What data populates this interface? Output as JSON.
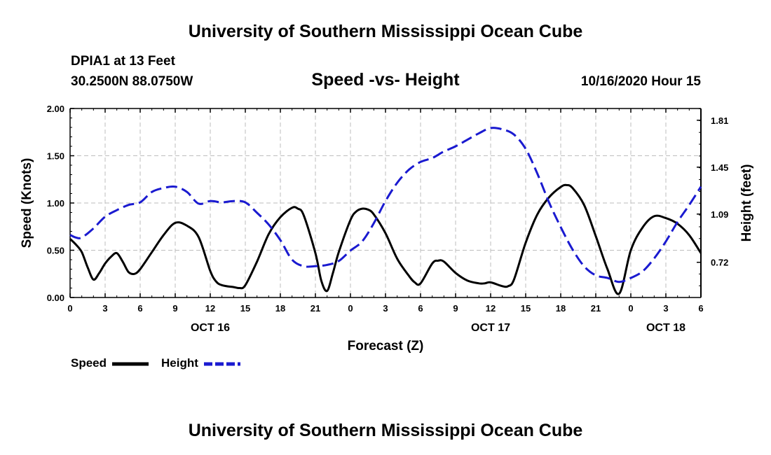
{
  "page": {
    "top_title": "University of Southern Mississippi Ocean Cube",
    "bottom_title": "University of Southern Mississippi Ocean Cube",
    "station": "DPIA1 at 13 Feet",
    "coords": "30.2500N 88.0750W",
    "datetime": "10/16/2020 Hour 15"
  },
  "chart_data": {
    "type": "line",
    "title": "Speed -vs- Height",
    "xlabel": "Forecast (Z)",
    "ylabel": "Speed (Knots)",
    "y2label": "Height (feet)",
    "xlim": [
      0,
      54
    ],
    "ylim": [
      0,
      2
    ],
    "y2lim": [
      0.45,
      1.9
    ],
    "grid": true,
    "x_ticks": [
      0,
      3,
      6,
      9,
      12,
      15,
      18,
      21,
      24,
      27,
      30,
      33,
      36,
      39,
      42,
      45,
      48,
      51,
      54
    ],
    "x_tick_labels": [
      "0",
      "3",
      "6",
      "9",
      "12",
      "15",
      "18",
      "21",
      "0",
      "3",
      "6",
      "9",
      "12",
      "15",
      "18",
      "21",
      "0",
      "3",
      "6"
    ],
    "date_labels": [
      {
        "x": 12,
        "text": "OCT 16"
      },
      {
        "x": 36,
        "text": "OCT 17"
      },
      {
        "x": 51,
        "text": "OCT 18"
      }
    ],
    "y_ticks": [
      0,
      0.5,
      1,
      1.5,
      2
    ],
    "y_tick_labels": [
      "0.00",
      "0.50",
      "1.00",
      "1.50",
      "2.00"
    ],
    "y2_ticks": [
      0.72,
      1.09,
      1.45,
      1.81
    ],
    "y2_tick_labels": [
      "0.72",
      "1.09",
      "1.45",
      "1.81"
    ],
    "legend": {
      "position": "bottom-left",
      "speed_label": "Speed",
      "height_label": "Height"
    },
    "series": [
      {
        "name": "Speed",
        "axis": "left",
        "color": "#000000",
        "dash": "solid",
        "points": [
          [
            0,
            0.62
          ],
          [
            0.5,
            0.56
          ],
          [
            1,
            0.48
          ],
          [
            1.5,
            0.32
          ],
          [
            2,
            0.19
          ],
          [
            2.5,
            0.26
          ],
          [
            3,
            0.36
          ],
          [
            3.5,
            0.43
          ],
          [
            4,
            0.47
          ],
          [
            4.5,
            0.38
          ],
          [
            5,
            0.27
          ],
          [
            5.5,
            0.25
          ],
          [
            6,
            0.3
          ],
          [
            7,
            0.48
          ],
          [
            8,
            0.66
          ],
          [
            9,
            0.79
          ],
          [
            10,
            0.76
          ],
          [
            11,
            0.64
          ],
          [
            12,
            0.28
          ],
          [
            12.5,
            0.17
          ],
          [
            13,
            0.13
          ],
          [
            14,
            0.11
          ],
          [
            14.5,
            0.1
          ],
          [
            15,
            0.13
          ],
          [
            16,
            0.38
          ],
          [
            17,
            0.67
          ],
          [
            18,
            0.85
          ],
          [
            19,
            0.95
          ],
          [
            19.5,
            0.94
          ],
          [
            20,
            0.87
          ],
          [
            21,
            0.47
          ],
          [
            21.5,
            0.18
          ],
          [
            22,
            0.07
          ],
          [
            22.5,
            0.26
          ],
          [
            23,
            0.48
          ],
          [
            24,
            0.82
          ],
          [
            24.5,
            0.91
          ],
          [
            25,
            0.94
          ],
          [
            25.5,
            0.93
          ],
          [
            26,
            0.88
          ],
          [
            27,
            0.68
          ],
          [
            28,
            0.41
          ],
          [
            29,
            0.23
          ],
          [
            29.5,
            0.16
          ],
          [
            30,
            0.15
          ],
          [
            31,
            0.36
          ],
          [
            31.5,
            0.39
          ],
          [
            32,
            0.38
          ],
          [
            33,
            0.26
          ],
          [
            34,
            0.18
          ],
          [
            35,
            0.15
          ],
          [
            35.5,
            0.15
          ],
          [
            36,
            0.16
          ],
          [
            37,
            0.12
          ],
          [
            37.5,
            0.12
          ],
          [
            38,
            0.19
          ],
          [
            39,
            0.58
          ],
          [
            40,
            0.88
          ],
          [
            41,
            1.06
          ],
          [
            42,
            1.17
          ],
          [
            42.5,
            1.19
          ],
          [
            43,
            1.16
          ],
          [
            44,
            0.98
          ],
          [
            45,
            0.65
          ],
          [
            46,
            0.3
          ],
          [
            47,
            0.04
          ],
          [
            48,
            0.5
          ],
          [
            49,
            0.74
          ],
          [
            50,
            0.86
          ],
          [
            51,
            0.84
          ],
          [
            52,
            0.78
          ],
          [
            53,
            0.66
          ],
          [
            54,
            0.47
          ]
        ]
      },
      {
        "name": "Height",
        "axis": "right",
        "color": "#1a1ad0",
        "dash": "dashed",
        "points": [
          [
            0,
            0.93
          ],
          [
            0.5,
            0.91
          ],
          [
            1,
            0.91
          ],
          [
            2,
            0.98
          ],
          [
            3,
            1.07
          ],
          [
            4,
            1.12
          ],
          [
            5,
            1.16
          ],
          [
            6,
            1.18
          ],
          [
            7,
            1.26
          ],
          [
            8,
            1.29
          ],
          [
            9,
            1.3
          ],
          [
            10,
            1.26
          ],
          [
            11,
            1.17
          ],
          [
            12,
            1.19
          ],
          [
            13,
            1.18
          ],
          [
            14,
            1.19
          ],
          [
            15,
            1.18
          ],
          [
            16,
            1.1
          ],
          [
            17,
            1.01
          ],
          [
            18,
            0.89
          ],
          [
            19,
            0.74
          ],
          [
            20,
            0.69
          ],
          [
            21,
            0.69
          ],
          [
            22,
            0.7
          ],
          [
            23,
            0.73
          ],
          [
            24,
            0.81
          ],
          [
            25,
            0.88
          ],
          [
            26,
            1.02
          ],
          [
            27,
            1.19
          ],
          [
            28,
            1.33
          ],
          [
            29,
            1.43
          ],
          [
            30,
            1.49
          ],
          [
            31,
            1.52
          ],
          [
            32,
            1.57
          ],
          [
            33,
            1.61
          ],
          [
            34,
            1.66
          ],
          [
            35,
            1.71
          ],
          [
            36,
            1.75
          ],
          [
            37,
            1.74
          ],
          [
            38,
            1.7
          ],
          [
            39,
            1.59
          ],
          [
            40,
            1.4
          ],
          [
            41,
            1.18
          ],
          [
            42,
            0.99
          ],
          [
            43,
            0.82
          ],
          [
            44,
            0.69
          ],
          [
            45,
            0.62
          ],
          [
            46,
            0.6
          ],
          [
            47,
            0.57
          ],
          [
            48,
            0.6
          ],
          [
            49,
            0.65
          ],
          [
            50,
            0.75
          ],
          [
            51,
            0.88
          ],
          [
            52,
            1.03
          ],
          [
            53,
            1.16
          ],
          [
            54,
            1.3
          ]
        ]
      }
    ]
  }
}
